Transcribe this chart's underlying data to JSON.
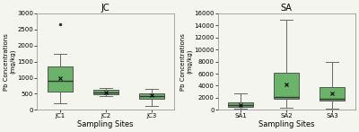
{
  "left_title": "JC",
  "right_title": "SA",
  "xlabel": "Sampling Sites",
  "ylabel": "Pb Concentrations\n(mg/kg)",
  "jc_boxes": {
    "labels": [
      "JC1",
      "JC2",
      "JC3"
    ],
    "whislo": [
      200,
      430,
      130
    ],
    "q1": [
      580,
      490,
      330
    ],
    "med": [
      900,
      540,
      420
    ],
    "q3": [
      1350,
      610,
      520
    ],
    "whishi": [
      1750,
      680,
      660
    ],
    "fliers_high": [
      2650
    ],
    "fliers_high_pos": [
      1
    ],
    "means": [
      1000,
      545,
      460
    ],
    "ylim": [
      0,
      3000
    ],
    "yticks": [
      0,
      500,
      1000,
      1500,
      2000,
      2500,
      3000
    ]
  },
  "sa_boxes": {
    "labels": [
      "SA1",
      "SA2",
      "SA3"
    ],
    "whislo": [
      150,
      400,
      200
    ],
    "q1": [
      500,
      1900,
      1500
    ],
    "med": [
      850,
      2200,
      1900
    ],
    "q3": [
      1200,
      6200,
      3800
    ],
    "whishi": [
      2700,
      15000,
      8000
    ],
    "means": [
      850,
      4200,
      2700
    ],
    "ylim": [
      0,
      16000
    ],
    "yticks": [
      0,
      2000,
      4000,
      6000,
      8000,
      10000,
      12000,
      14000,
      16000
    ]
  },
  "box_facecolor": "#6ab46a",
  "box_edgecolor": "#555555",
  "median_color": "#333333",
  "whisker_color": "#666666",
  "cap_color": "#666666",
  "flier_color": "#333333",
  "mean_marker": "x",
  "mean_color": "#000000",
  "background_color": "#f5f5f0"
}
